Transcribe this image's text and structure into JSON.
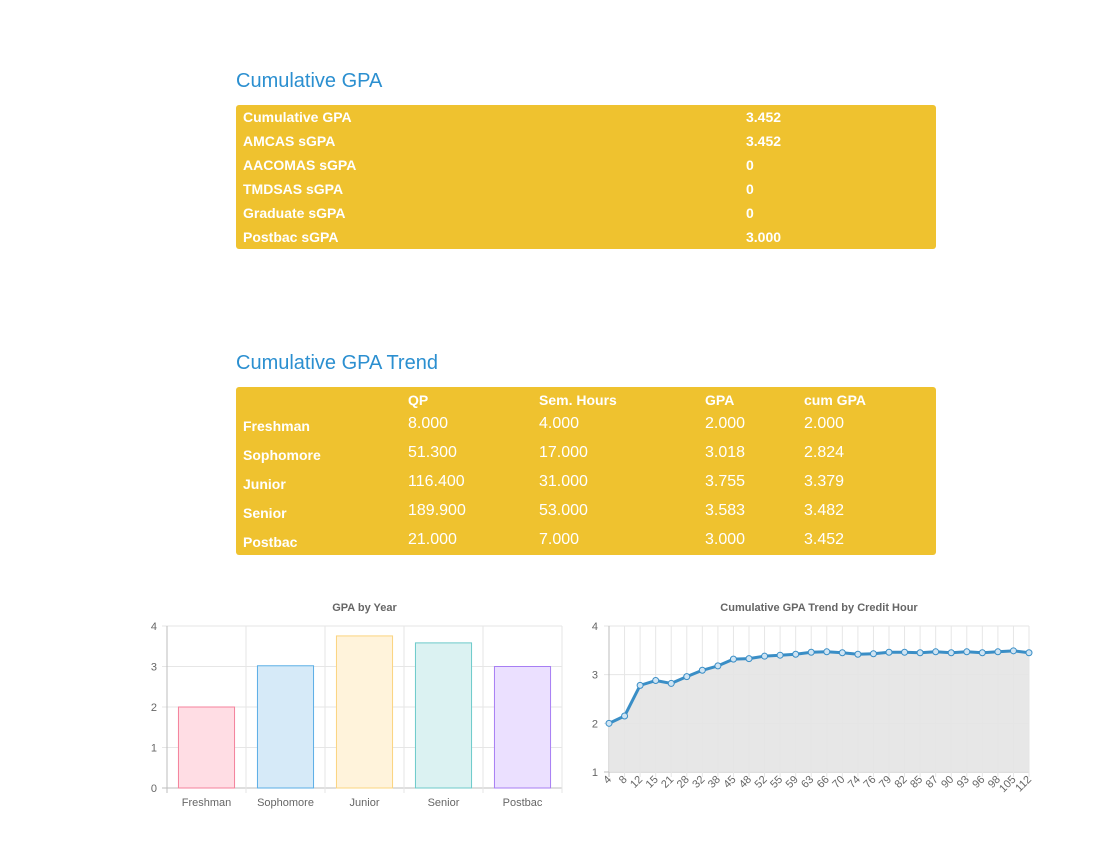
{
  "summary": {
    "heading": "Cumulative GPA",
    "rows": [
      {
        "label": "Cumulative GPA",
        "value": "3.452"
      },
      {
        "label": "AMCAS sGPA",
        "value": "3.452"
      },
      {
        "label": "AACOMAS sGPA",
        "value": "0"
      },
      {
        "label": "TMDSAS sGPA",
        "value": "0"
      },
      {
        "label": "Graduate sGPA",
        "value": "0"
      },
      {
        "label": "Postbac sGPA",
        "value": "3.000"
      }
    ]
  },
  "trend_table": {
    "heading": "Cumulative GPA Trend",
    "headers": [
      "",
      "QP",
      "Sem. Hours",
      "GPA",
      "cum GPA"
    ],
    "rows": [
      {
        "year": "Freshman",
        "qp": "8.000",
        "hours": "4.000",
        "gpa": "2.000",
        "cum": "2.000"
      },
      {
        "year": "Sophomore",
        "qp": "51.300",
        "hours": "17.000",
        "gpa": "3.018",
        "cum": "2.824"
      },
      {
        "year": "Junior",
        "qp": "116.400",
        "hours": "31.000",
        "gpa": "3.755",
        "cum": "3.379"
      },
      {
        "year": "Senior",
        "qp": "189.900",
        "hours": "53.000",
        "gpa": "3.583",
        "cum": "3.482"
      },
      {
        "year": "Postbac",
        "qp": "21.000",
        "hours": "7.000",
        "gpa": "3.000",
        "cum": "3.452"
      }
    ]
  },
  "colors": {
    "panel": "#efc22f",
    "heading": "#2b8fd0",
    "line": "#3a8ec6",
    "area_fill": "#e4e4e4"
  },
  "chart_data": [
    {
      "type": "bar",
      "title": "GPA by Year",
      "categories": [
        "Freshman",
        "Sophomore",
        "Junior",
        "Senior",
        "Postbac"
      ],
      "values": [
        2.0,
        3.018,
        3.755,
        3.583,
        3.0
      ],
      "ylim": [
        0,
        4
      ],
      "yticks": [
        "0",
        "1",
        "2",
        "3",
        "4"
      ],
      "grid": true,
      "legend": "none",
      "bar_fills": [
        "#ffdde4",
        "#d6eaf8",
        "#fff3db",
        "#dbf2f2",
        "#ebe0ff"
      ],
      "bar_strokes": [
        "#f4819b",
        "#5aaee6",
        "#fbd47f",
        "#6ccaca",
        "#a77ef3"
      ]
    },
    {
      "type": "area",
      "title": "Cumulative GPA Trend by Credit Hour",
      "x": [
        "4",
        "8",
        "12",
        "15",
        "21",
        "28",
        "32",
        "38",
        "45",
        "48",
        "52",
        "55",
        "59",
        "63",
        "66",
        "70",
        "74",
        "76",
        "79",
        "82",
        "85",
        "87",
        "90",
        "93",
        "96",
        "98",
        "105",
        "112"
      ],
      "values": [
        2.0,
        2.15,
        2.78,
        2.88,
        2.82,
        2.96,
        3.09,
        3.18,
        3.32,
        3.33,
        3.38,
        3.4,
        3.42,
        3.46,
        3.47,
        3.45,
        3.42,
        3.43,
        3.46,
        3.46,
        3.45,
        3.47,
        3.45,
        3.47,
        3.45,
        3.47,
        3.49,
        3.45
      ],
      "ylim": [
        1,
        4
      ],
      "yticks": [
        "1",
        "2",
        "3",
        "4"
      ],
      "grid": true,
      "legend": "none"
    }
  ]
}
